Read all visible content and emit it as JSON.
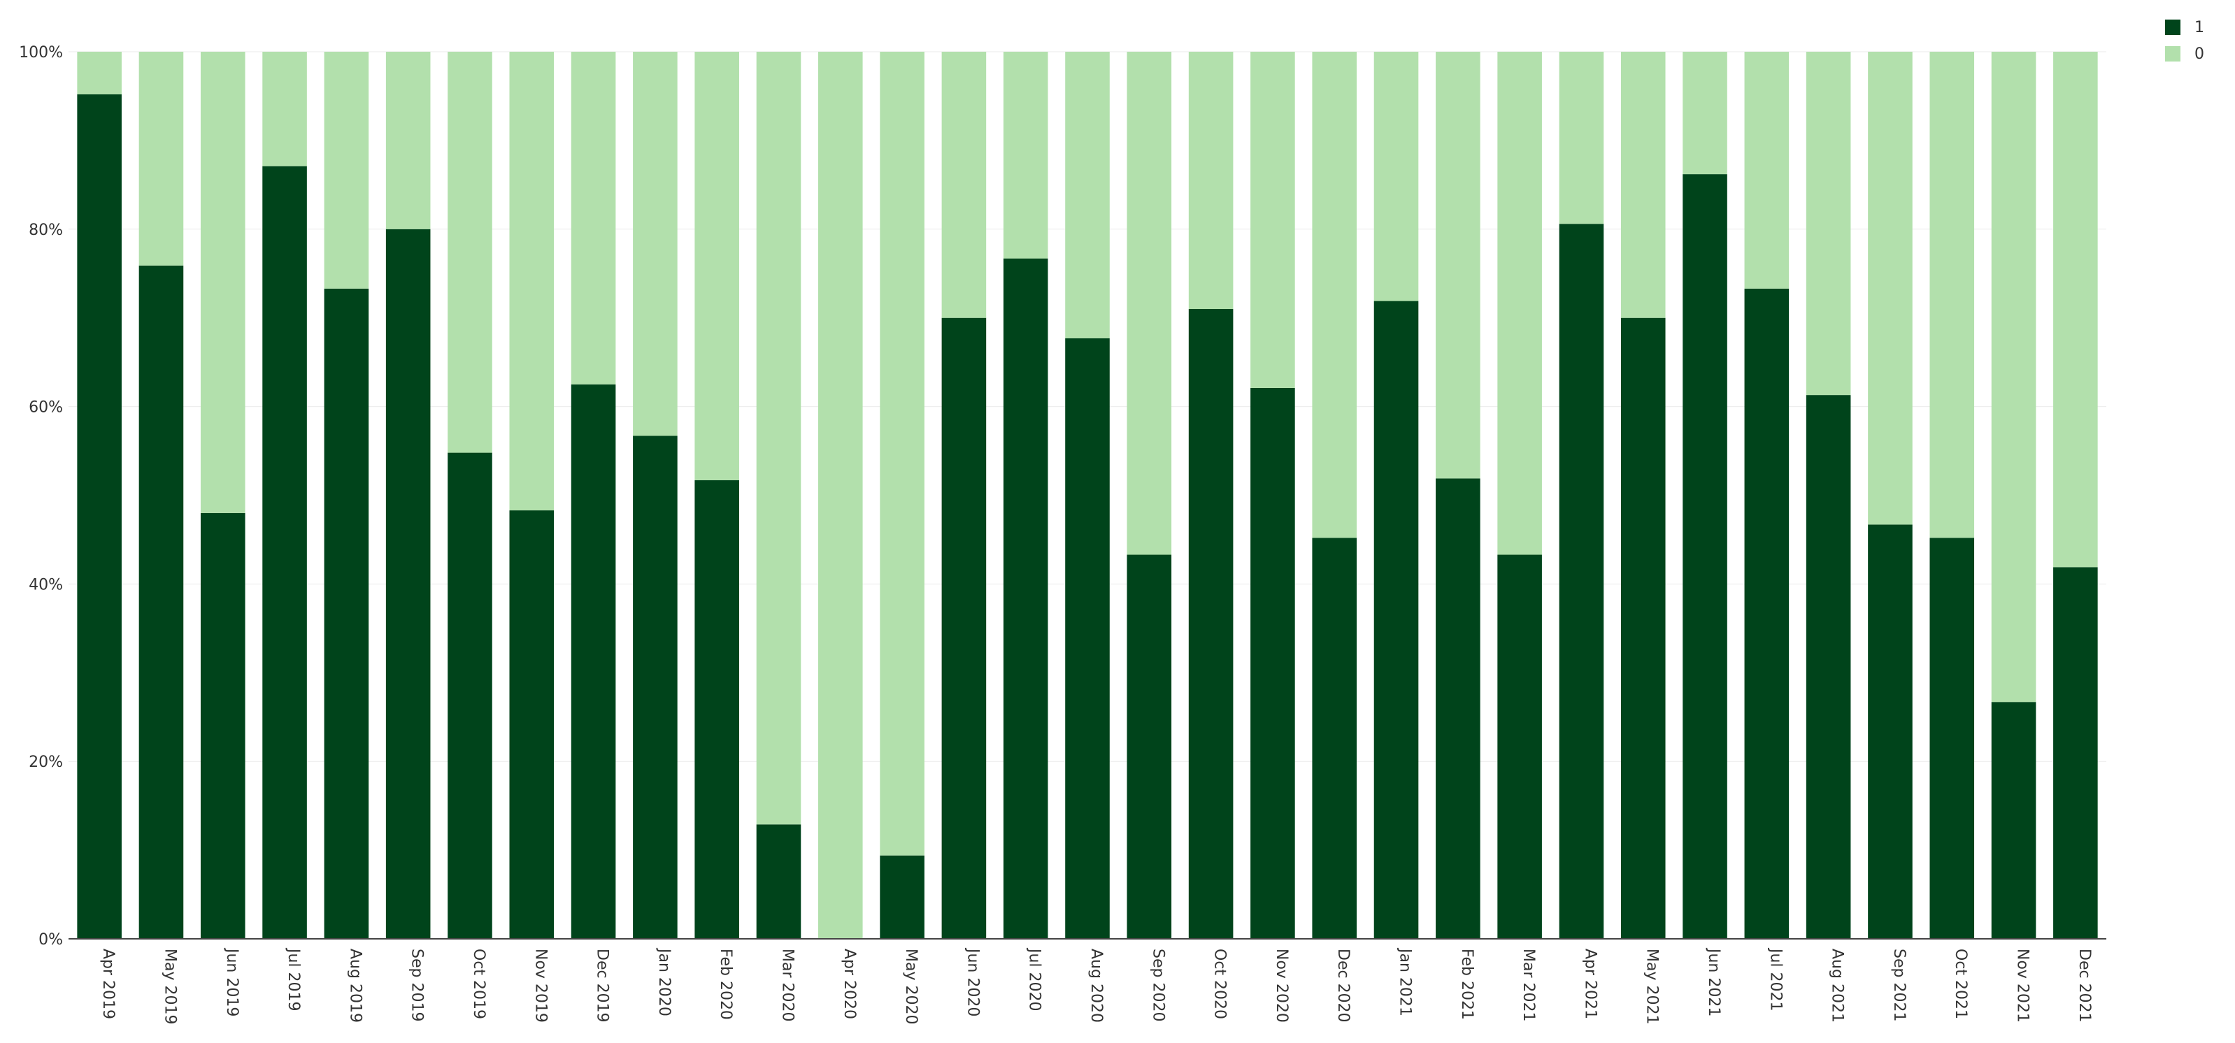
{
  "chart_data": {
    "type": "bar",
    "stacked": true,
    "normalized": true,
    "categories": [
      "Apr 2019",
      "May 2019",
      "Jun 2019",
      "Jul 2019",
      "Aug 2019",
      "Sep 2019",
      "Oct 2019",
      "Nov 2019",
      "Dec 2019",
      "Jan 2020",
      "Feb 2020",
      "Mar 2020",
      "Apr 2020",
      "May 2020",
      "Jun 2020",
      "Jul 2020",
      "Aug 2020",
      "Sep 2020",
      "Oct 2020",
      "Nov 2020",
      "Dec 2020",
      "Jan 2021",
      "Feb 2021",
      "Mar 2021",
      "Apr 2021",
      "May 2021",
      "Jun 2021",
      "Jul 2021",
      "Aug 2021",
      "Sep 2021",
      "Oct 2021",
      "Nov 2021",
      "Dec 2021"
    ],
    "series": [
      {
        "name": "1",
        "color": "#00441b",
        "values": [
          95.2,
          75.9,
          48.0,
          87.1,
          73.3,
          80.0,
          54.8,
          48.3,
          62.5,
          56.7,
          51.7,
          12.9,
          0,
          9.4,
          70.0,
          76.7,
          67.7,
          43.3,
          71.0,
          62.1,
          45.2,
          71.9,
          51.9,
          43.3,
          80.6,
          70.0,
          86.2,
          73.3,
          61.3,
          46.7,
          45.2,
          26.7,
          41.9
        ]
      },
      {
        "name": "0",
        "color": "#b2e0ac",
        "values": [
          4.8,
          24.1,
          52.0,
          12.9,
          26.7,
          20.0,
          45.2,
          51.7,
          37.5,
          43.3,
          48.3,
          87.1,
          100,
          90.6,
          30.0,
          23.3,
          32.3,
          56.7,
          29.0,
          37.9,
          54.8,
          28.1,
          48.1,
          56.7,
          19.4,
          30.0,
          13.8,
          26.7,
          38.7,
          53.3,
          54.8,
          73.3,
          58.1
        ]
      }
    ],
    "ylim": [
      0,
      100
    ],
    "yticks": [
      "0%",
      "20%",
      "40%",
      "60%",
      "80%",
      "100%"
    ],
    "grid": true,
    "legend_position": "top-right",
    "title": "",
    "xlabel": "",
    "ylabel": ""
  }
}
